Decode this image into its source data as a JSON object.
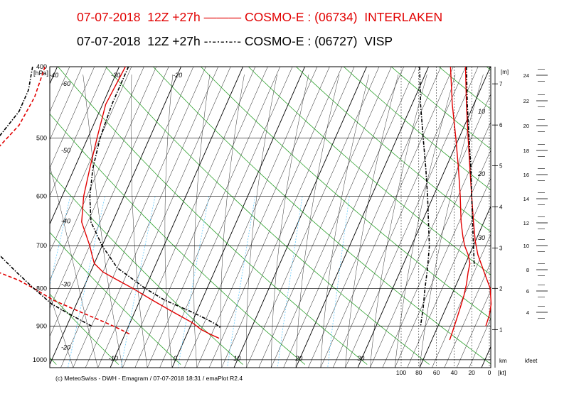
{
  "chart_data": {
    "type": "line",
    "title_lines": [
      {
        "date": "07-07-2018",
        "run": "12Z +27h",
        "model": "COSMO-E : (06734)",
        "station": "INTERLAKEN",
        "color": "#e10000",
        "line_style": "solid"
      },
      {
        "date": "07-07-2018",
        "run": "12Z +27h",
        "model": "COSMO-E : (06727)",
        "station": "VISP",
        "color": "#000000",
        "line_style": "dash-dot"
      }
    ],
    "pressure_axis": {
      "label": "[hPa]",
      "ticks": [
        "400",
        "500",
        "600",
        "700",
        "800",
        "900",
        "1000"
      ],
      "values": [
        400,
        500,
        600,
        700,
        800,
        900,
        1000
      ],
      "range": [
        400,
        1025
      ]
    },
    "temperature_labels_bottom": [
      "-10",
      "0",
      "10",
      "20",
      "30"
    ],
    "temperature_labels_isotherms": [
      "-60",
      "-50",
      "-40",
      "-30",
      "-20"
    ],
    "temperature_labels_left": [
      "-60",
      "-50",
      "-40",
      "-30",
      "-20"
    ],
    "height_axis_m": {
      "label": "[m]",
      "ticks": [
        "1",
        "2",
        "3",
        "4",
        "5",
        "6",
        "7"
      ],
      "values": [
        1,
        2,
        3,
        4,
        5,
        6,
        7
      ]
    },
    "height_axis_kfeet": {
      "label": "kfeet",
      "ticks": [
        "4",
        "6",
        "8",
        "10",
        "12",
        "14",
        "16",
        "18",
        "20",
        "22",
        "24"
      ],
      "values": [
        4,
        6,
        8,
        10,
        12,
        14,
        16,
        18,
        20,
        22,
        24
      ]
    },
    "km_label": "km",
    "wind_axis": {
      "label": "[kt]",
      "ticks": [
        "100",
        "80",
        "60",
        "40",
        "20",
        "0"
      ],
      "values": [
        100,
        80,
        60,
        40,
        20,
        0
      ]
    },
    "wind_region_labels": [
      "10",
      "20",
      "30"
    ],
    "series": [
      {
        "name": "INTERLAKEN temperature",
        "color": "#e10000",
        "style": "solid",
        "points": [
          [
            400,
            -29
          ],
          [
            450,
            -29.5
          ],
          [
            500,
            -28.5
          ],
          [
            550,
            -27.5
          ],
          [
            600,
            -26.5
          ],
          [
            650,
            -25
          ],
          [
            700,
            -22
          ],
          [
            720,
            -21
          ],
          [
            740,
            -20
          ],
          [
            760,
            -18
          ],
          [
            780,
            -15
          ],
          [
            800,
            -12
          ],
          [
            830,
            -8
          ],
          [
            860,
            -4
          ],
          [
            890,
            0
          ],
          [
            910,
            2
          ],
          [
            925,
            4
          ],
          [
            935,
            5.5
          ]
        ]
      },
      {
        "name": "INTERLAKEN dew point",
        "color": "#e10000",
        "style": "dashed",
        "points": [
          [
            400,
            -42
          ],
          [
            440,
            -41.5
          ],
          [
            480,
            -42
          ],
          [
            520,
            -44
          ],
          [
            560,
            -47
          ],
          [
            600,
            -51
          ],
          [
            640,
            -55
          ],
          [
            660,
            -56
          ],
          [
            680,
            -53
          ],
          [
            700,
            -46
          ],
          [
            720,
            -40
          ],
          [
            740,
            -38
          ],
          [
            760,
            -35
          ],
          [
            780,
            -31
          ],
          [
            800,
            -28
          ],
          [
            830,
            -24
          ],
          [
            860,
            -19
          ],
          [
            890,
            -14
          ],
          [
            910,
            -11
          ],
          [
            925,
            -9
          ]
        ]
      },
      {
        "name": "VISP temperature",
        "color": "#000000",
        "style": "dash-dot",
        "points": [
          [
            400,
            -28.5
          ],
          [
            450,
            -28.5
          ],
          [
            500,
            -28
          ],
          [
            550,
            -27
          ],
          [
            600,
            -25.5
          ],
          [
            650,
            -23.5
          ],
          [
            700,
            -20
          ],
          [
            750,
            -16
          ],
          [
            800,
            -10
          ],
          [
            830,
            -6
          ],
          [
            860,
            -1
          ],
          [
            880,
            2
          ],
          [
            895,
            4
          ],
          [
            905,
            5
          ]
        ]
      },
      {
        "name": "VISP dew point",
        "color": "#000000",
        "style": "dash-dot",
        "points": [
          [
            400,
            -44
          ],
          [
            430,
            -43
          ],
          [
            460,
            -43
          ],
          [
            500,
            -44.5
          ],
          [
            540,
            -47
          ],
          [
            580,
            -50
          ],
          [
            610,
            -52
          ],
          [
            640,
            -49
          ],
          [
            670,
            -42
          ],
          [
            700,
            -38
          ],
          [
            730,
            -35
          ],
          [
            760,
            -32
          ],
          [
            800,
            -28
          ],
          [
            840,
            -24
          ],
          [
            870,
            -20
          ],
          [
            900,
            -16
          ]
        ]
      },
      {
        "name": "INTERLAKEN wind speed",
        "color": "#e10000",
        "style": "solid",
        "units": "kt",
        "points": [
          [
            400,
            44
          ],
          [
            450,
            42
          ],
          [
            500,
            38
          ],
          [
            550,
            35
          ],
          [
            600,
            33
          ],
          [
            650,
            32
          ],
          [
            680,
            30
          ],
          [
            700,
            28
          ],
          [
            720,
            24
          ],
          [
            740,
            22
          ],
          [
            760,
            24
          ],
          [
            790,
            26
          ],
          [
            820,
            29
          ],
          [
            850,
            33
          ],
          [
            880,
            37
          ],
          [
            910,
            41
          ],
          [
            940,
            45
          ]
        ]
      },
      {
        "name": "INTERLAKEN wind speed (upper)",
        "color": "#e10000",
        "style": "solid",
        "units": "kt",
        "points": [
          [
            400,
            27
          ],
          [
            450,
            26
          ],
          [
            500,
            24
          ],
          [
            550,
            22
          ],
          [
            600,
            20
          ],
          [
            650,
            18
          ],
          [
            690,
            16
          ],
          [
            720,
            13
          ],
          [
            760,
            6
          ],
          [
            800,
            -1
          ],
          [
            840,
            -2
          ],
          [
            870,
            0
          ],
          [
            900,
            4
          ]
        ]
      },
      {
        "name": "VISP wind speed",
        "color": "#000000",
        "style": "dash-dot",
        "units": "kt",
        "points": [
          [
            400,
            79
          ],
          [
            450,
            78
          ],
          [
            500,
            75
          ],
          [
            550,
            72
          ],
          [
            600,
            70
          ],
          [
            650,
            69
          ],
          [
            700,
            68
          ],
          [
            750,
            70
          ],
          [
            800,
            73
          ],
          [
            850,
            75
          ],
          [
            900,
            78
          ]
        ]
      },
      {
        "name": "VISP wind speed (upper)",
        "color": "#000000",
        "style": "dash-dot",
        "units": "kt",
        "points": [
          [
            400,
            26
          ],
          [
            450,
            25
          ],
          [
            500,
            23
          ],
          [
            550,
            21
          ],
          [
            600,
            20
          ],
          [
            650,
            19
          ],
          [
            700,
            18
          ],
          [
            750,
            17
          ]
        ]
      }
    ],
    "grid": true
  },
  "footer": "(c) MeteoSwiss - DWH - Emagram / 07-07-2018  18:31 / emaPlot R2.4",
  "colors": {
    "isotherm": "#000000",
    "dry_adiabat": "#2ca02c",
    "moist_adiabat": "#000000",
    "mixing_ratio": "#66ccff",
    "interlaken": "#e10000",
    "visp": "#000000"
  }
}
